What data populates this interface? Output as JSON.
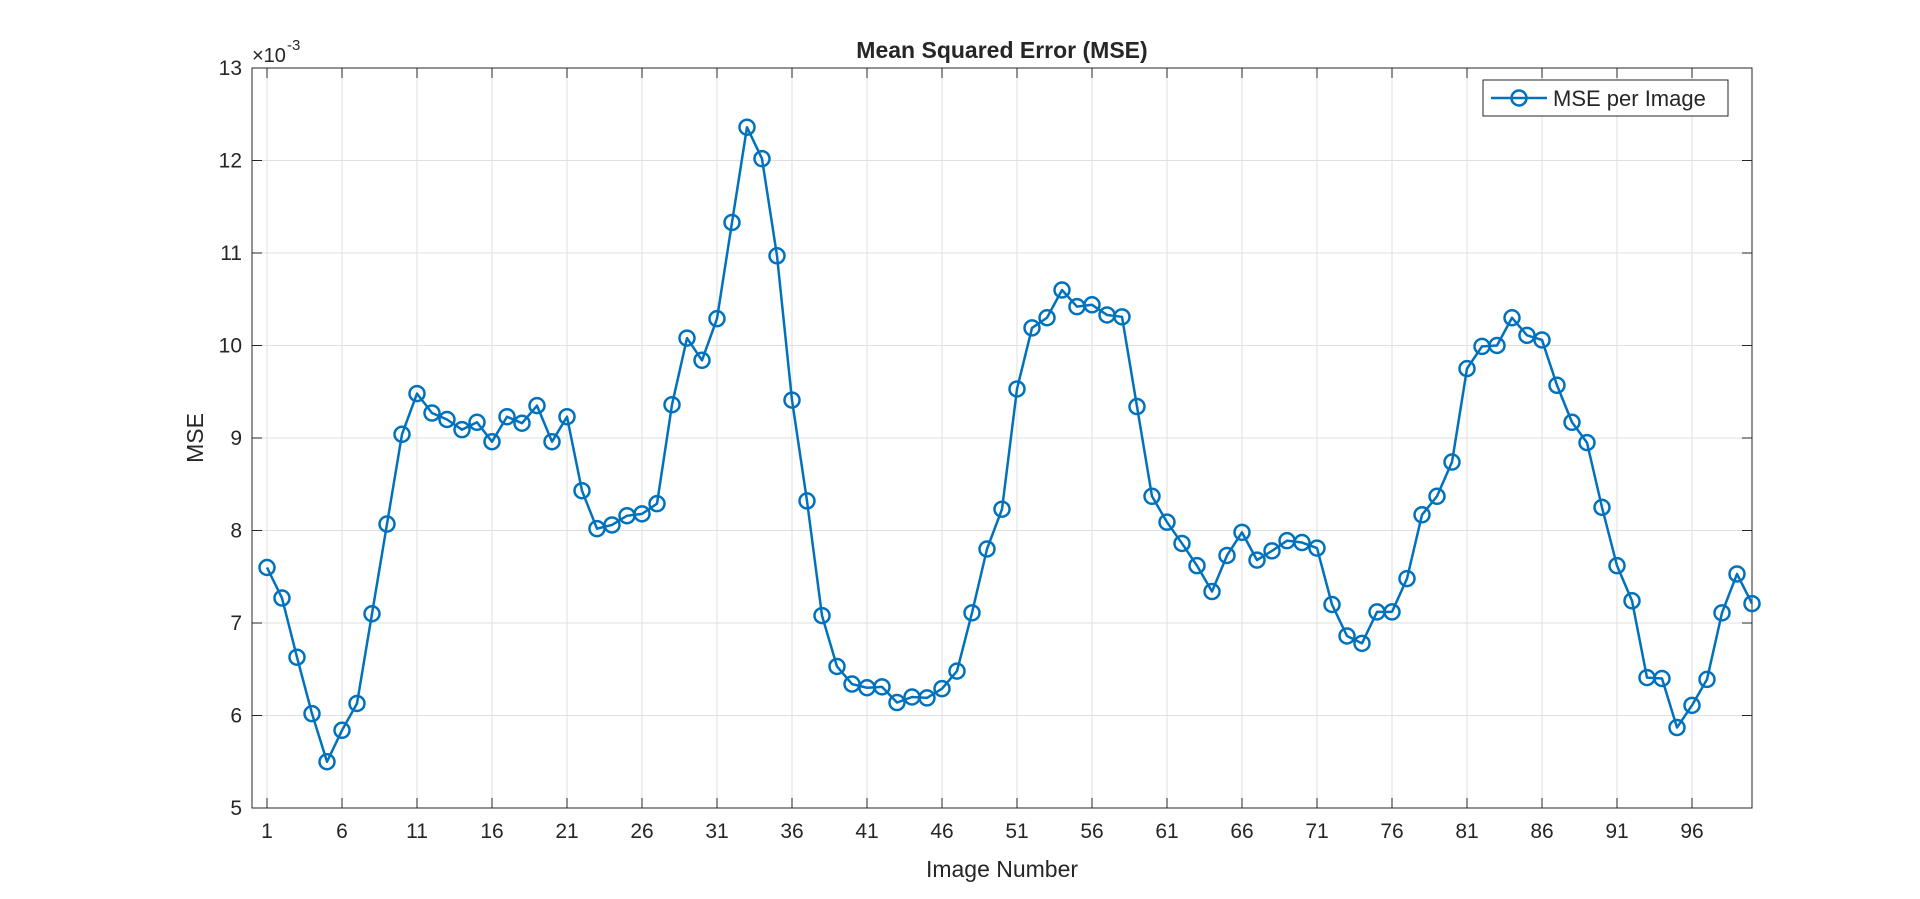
{
  "chart_data": {
    "type": "line",
    "title": "Mean Squared Error (MSE)",
    "xlabel": "Image Number",
    "ylabel": "MSE",
    "y_exponent_label": "×10",
    "y_exponent_power": "-3",
    "xlim": [
      0,
      100
    ],
    "ylim": [
      5,
      13
    ],
    "x_ticks": [
      1,
      6,
      11,
      16,
      21,
      26,
      31,
      36,
      41,
      46,
      51,
      56,
      61,
      66,
      71,
      76,
      81,
      86,
      91,
      96
    ],
    "y_ticks": [
      5,
      6,
      7,
      8,
      9,
      10,
      11,
      12,
      13
    ],
    "grid": true,
    "legend_position": "top-right",
    "series": [
      {
        "name": "MSE per Image",
        "color": "#0072bd",
        "marker": "circle",
        "x": [
          1,
          2,
          3,
          4,
          5,
          6,
          7,
          8,
          9,
          10,
          11,
          12,
          13,
          14,
          15,
          16,
          17,
          18,
          19,
          20,
          21,
          22,
          23,
          24,
          25,
          26,
          27,
          28,
          29,
          30,
          31,
          32,
          33,
          34,
          35,
          36,
          37,
          38,
          39,
          40,
          41,
          42,
          43,
          44,
          45,
          46,
          47,
          48,
          49,
          50,
          51,
          52,
          53,
          54,
          55,
          56,
          57,
          58,
          59,
          60,
          61,
          62,
          63,
          64,
          65,
          66,
          67,
          68,
          69,
          70,
          71,
          72,
          73,
          74,
          75,
          76,
          77,
          78,
          79,
          80,
          81,
          82,
          83,
          84,
          85,
          86,
          87,
          88,
          89,
          90,
          91,
          92,
          93,
          94,
          95,
          96,
          97,
          98,
          99,
          100
        ],
        "values": [
          7.6,
          7.27,
          6.63,
          6.02,
          5.5,
          5.84,
          6.13,
          7.1,
          8.07,
          9.04,
          9.48,
          9.27,
          9.2,
          9.09,
          9.17,
          8.96,
          9.23,
          9.16,
          9.35,
          8.96,
          9.23,
          8.43,
          8.02,
          8.06,
          8.16,
          8.18,
          8.29,
          9.36,
          10.08,
          9.84,
          10.29,
          11.33,
          12.36,
          12.02,
          10.97,
          9.41,
          8.32,
          7.08,
          6.53,
          6.34,
          6.3,
          6.31,
          6.14,
          6.2,
          6.19,
          6.29,
          6.48,
          7.11,
          7.8,
          8.23,
          9.53,
          10.19,
          10.3,
          10.6,
          10.42,
          10.44,
          10.33,
          10.31,
          9.34,
          8.37,
          8.09,
          7.86,
          7.62,
          7.34,
          7.73,
          7.98,
          7.68,
          7.78,
          7.89,
          7.87,
          7.81,
          7.2,
          6.86,
          6.78,
          7.12,
          7.12,
          7.48,
          8.17,
          8.37,
          8.74,
          9.75,
          9.99,
          10.0,
          10.3,
          10.11,
          10.06,
          9.57,
          9.17,
          8.95,
          8.25,
          7.62,
          7.24,
          6.41,
          6.4,
          5.87,
          6.11,
          6.39,
          7.11,
          7.53,
          7.21
        ]
      }
    ]
  }
}
